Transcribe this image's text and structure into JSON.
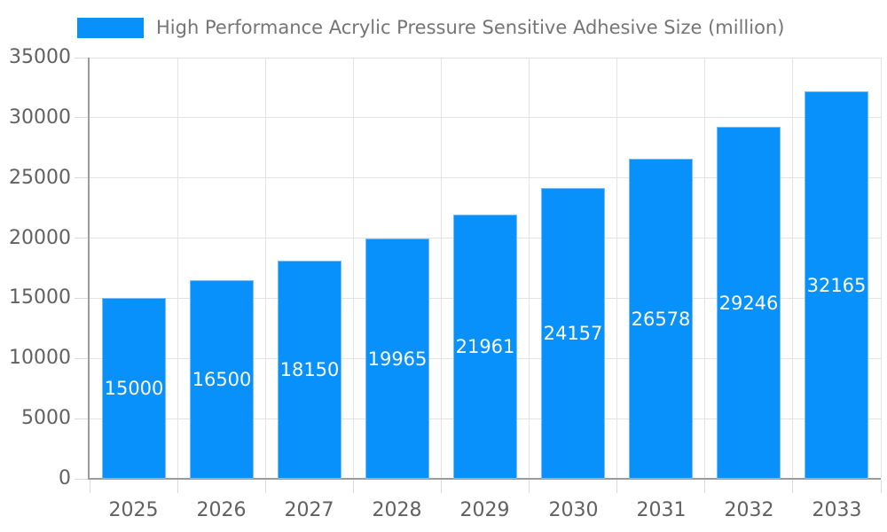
{
  "legend": {
    "label": "High Performance Acrylic Pressure Sensitive Adhesive Size (million)"
  },
  "chart_data": {
    "type": "bar",
    "title": "High Performance Acrylic Pressure Sensitive Adhesive Size (million)",
    "categories": [
      "2025",
      "2026",
      "2027",
      "2028",
      "2029",
      "2030",
      "2031",
      "2032",
      "2033"
    ],
    "values": [
      15000,
      16500,
      18150,
      19965,
      21961,
      24157,
      26578,
      29246,
      32165
    ],
    "value_labels": [
      "15000",
      "16500",
      "18150",
      "19965",
      "21961",
      "24157",
      "26578",
      "29246",
      "32165"
    ],
    "yticks": [
      0,
      5000,
      10000,
      15000,
      20000,
      25000,
      30000,
      35000
    ],
    "ylim": [
      0,
      35000
    ],
    "xlabel": "",
    "ylabel": "",
    "grid": true,
    "legend_position": "top-left",
    "value_label_position": "inside-center",
    "colors": {
      "bar_fill": "#0991FB",
      "bar_border": "#79BDFA",
      "gridline": "#E3E3E3",
      "tick": "#D9D9D9",
      "axis_line": "#9A9A9A",
      "axis_text": "#616161",
      "legend_text": "#757575",
      "value_text": "#FFFFFF",
      "background": "#FFFFFF"
    }
  }
}
